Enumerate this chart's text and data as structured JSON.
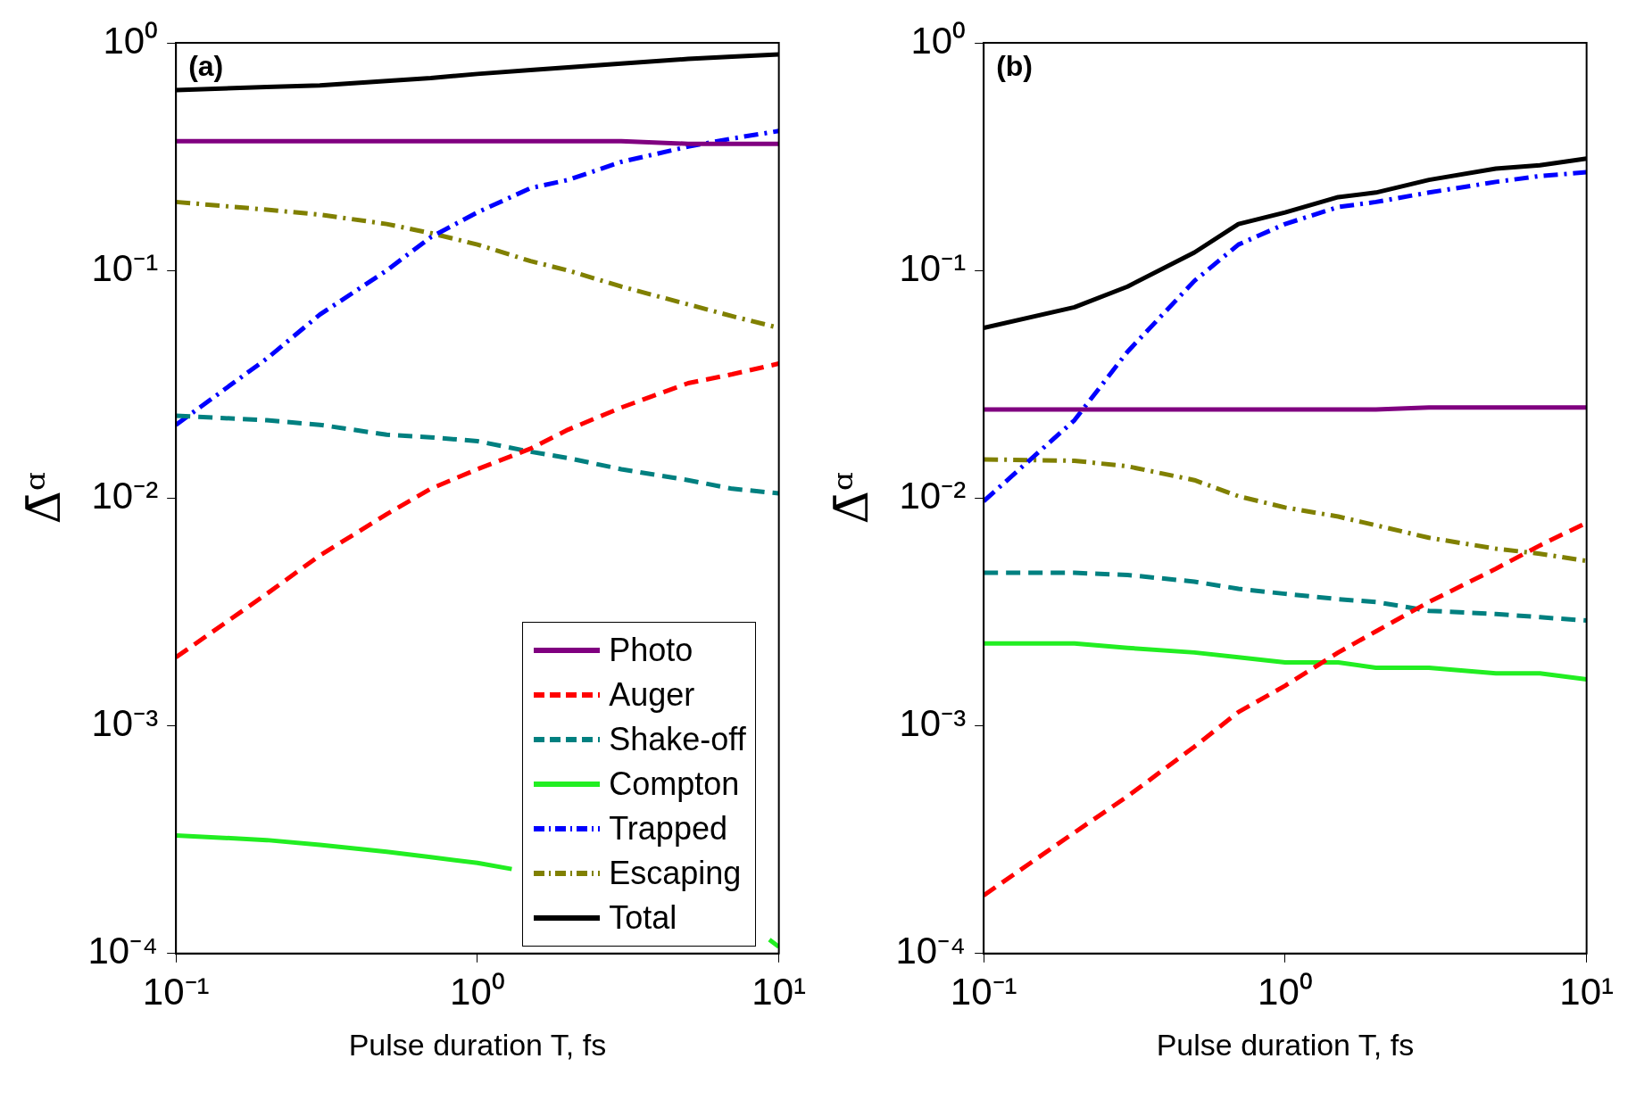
{
  "chart_data": [
    {
      "type": "line",
      "xlabel": "Pulse duration T, fs",
      "ylabel": "Δ̄ᵅ",
      "annotations": [
        "(a)"
      ],
      "log": "xy",
      "grid": false,
      "legend": "bottom right",
      "x": [
        0.1,
        0.2,
        0.3,
        0.5,
        0.7,
        1,
        1.5,
        2,
        3,
        5,
        7,
        10
      ],
      "xlim": [
        0.1,
        10
      ],
      "ylim": [
        0.0001,
        1
      ],
      "xticks": [
        {
          "value": 0.1,
          "label": "10⁻¹"
        },
        {
          "value": 1,
          "label": "10⁰"
        },
        {
          "value": 10,
          "label": "10¹"
        }
      ],
      "yticks": [
        {
          "value": 0.0001,
          "label": "10⁻⁴"
        },
        {
          "value": 0.001,
          "label": "10⁻³"
        },
        {
          "value": 0.01,
          "label": "10⁻²"
        },
        {
          "value": 0.1,
          "label": "10⁻¹"
        },
        {
          "value": 1,
          "label": "10⁰"
        }
      ],
      "series": [
        {
          "name": "Photo",
          "color": "#800080",
          "line_style": "solid",
          "values": [
            0.37,
            0.37,
            0.37,
            0.37,
            0.37,
            0.37,
            0.37,
            0.37,
            0.37,
            0.36,
            0.36,
            0.36
          ]
        },
        {
          "name": "Auger",
          "color": "#ff0000",
          "line_style": "dashed",
          "values": [
            0.002,
            0.0038,
            0.0056,
            0.0085,
            0.011,
            0.0134,
            0.0165,
            0.02,
            0.025,
            0.032,
            0.035,
            0.039
          ]
        },
        {
          "name": "Shake-off",
          "color": "#008080",
          "line_style": "dashed",
          "values": [
            0.023,
            0.022,
            0.021,
            0.019,
            0.0185,
            0.0178,
            0.016,
            0.015,
            0.0134,
            0.012,
            0.011,
            0.0105
          ]
        },
        {
          "name": "Compton",
          "color": "#22ee22",
          "line_style": "solid",
          "x": [
            0.1,
            0.2,
            0.3,
            0.5,
            0.7,
            1,
            1.3,
            3,
            9.3,
            10
          ],
          "values": [
            0.00033,
            0.000315,
            0.0003,
            0.00028,
            0.000265,
            0.00025,
            0.000235,
            null,
            0.000115,
            0.000107
          ]
        },
        {
          "name": "Trapped",
          "color": "#0000ff",
          "line_style": "dashdot",
          "values": [
            0.021,
            0.041,
            0.064,
            0.1,
            0.14,
            0.18,
            0.23,
            0.25,
            0.3,
            0.35,
            0.38,
            0.41
          ]
        },
        {
          "name": "Escaping",
          "color": "#808000",
          "line_style": "dashdot",
          "values": [
            0.2,
            0.185,
            0.176,
            0.16,
            0.146,
            0.13,
            0.11,
            0.1,
            0.085,
            0.071,
            0.063,
            0.056
          ]
        },
        {
          "name": "Total",
          "color": "#000000",
          "line_style": "solid",
          "values": [
            0.62,
            0.64,
            0.65,
            0.68,
            0.7,
            0.73,
            0.76,
            0.78,
            0.81,
            0.85,
            0.87,
            0.89
          ]
        }
      ]
    },
    {
      "type": "line",
      "xlabel": "Pulse duration T, fs",
      "ylabel": "Δ̄ᵅ",
      "annotations": [
        "(b)"
      ],
      "log": "xy",
      "grid": false,
      "x": [
        0.1,
        0.2,
        0.3,
        0.5,
        0.7,
        1,
        1.5,
        2,
        3,
        5,
        7,
        10
      ],
      "xlim": [
        0.1,
        10
      ],
      "ylim": [
        0.0001,
        1
      ],
      "xticks": [
        {
          "value": 0.1,
          "label": "10⁻¹"
        },
        {
          "value": 1,
          "label": "10⁰"
        },
        {
          "value": 10,
          "label": "10¹"
        }
      ],
      "yticks": [
        {
          "value": 0.0001,
          "label": "10⁻⁴"
        },
        {
          "value": 0.001,
          "label": "10⁻³"
        },
        {
          "value": 0.01,
          "label": "10⁻²"
        },
        {
          "value": 0.1,
          "label": "10⁻¹"
        },
        {
          "value": 1,
          "label": "10⁰"
        }
      ],
      "series": [
        {
          "color": "#800080",
          "line_style": "solid",
          "values": [
            0.0245,
            0.0245,
            0.0245,
            0.0245,
            0.0245,
            0.0245,
            0.0245,
            0.0245,
            0.025,
            0.025,
            0.025,
            0.025
          ]
        },
        {
          "color": "#ff0000",
          "line_style": "dashed",
          "values": [
            0.00018,
            0.00034,
            0.00049,
            0.00081,
            0.00115,
            0.0015,
            0.0021,
            0.0026,
            0.0035,
            0.0049,
            0.0062,
            0.0078
          ]
        },
        {
          "color": "#008080",
          "line_style": "dashed",
          "values": [
            0.0047,
            0.0047,
            0.0046,
            0.0043,
            0.004,
            0.0038,
            0.0036,
            0.0035,
            0.0032,
            0.0031,
            0.003,
            0.0029
          ]
        },
        {
          "color": "#22ee22",
          "line_style": "solid",
          "values": [
            0.0023,
            0.0023,
            0.0022,
            0.0021,
            0.002,
            0.0019,
            0.0019,
            0.0018,
            0.0018,
            0.0017,
            0.0017,
            0.0016
          ]
        },
        {
          "color": "#0000ff",
          "line_style": "dashdot",
          "values": [
            0.0097,
            0.022,
            0.044,
            0.09,
            0.13,
            0.16,
            0.19,
            0.2,
            0.22,
            0.245,
            0.26,
            0.27
          ]
        },
        {
          "color": "#808000",
          "line_style": "dashdot",
          "values": [
            0.0148,
            0.0146,
            0.0138,
            0.012,
            0.0102,
            0.0091,
            0.0083,
            0.0076,
            0.0067,
            0.006,
            0.0057,
            0.0053
          ]
        },
        {
          "color": "#000000",
          "line_style": "solid",
          "values": [
            0.056,
            0.069,
            0.085,
            0.12,
            0.16,
            0.18,
            0.21,
            0.22,
            0.25,
            0.28,
            0.29,
            0.31
          ]
        }
      ]
    }
  ]
}
